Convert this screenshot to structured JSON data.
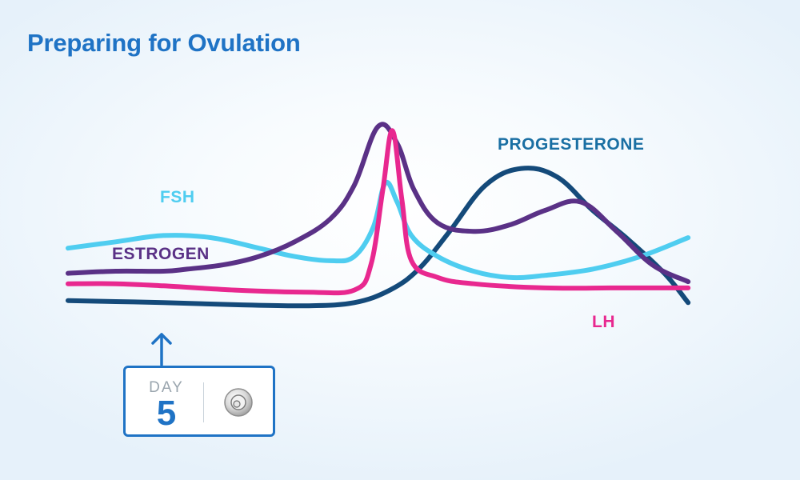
{
  "title": "Preparing for Ovulation",
  "day_card": {
    "label": "DAY",
    "number": "5",
    "icon": "egg-cell-icon"
  },
  "colors": {
    "title": "#1f73c5",
    "FSH": "#4fcdf0",
    "ESTROGEN": "#5a3186",
    "LH": "#e8288f",
    "PROGESTERONE": "#1a6fa3",
    "progesterone_line": "#144a7a",
    "card": "#1f73c5"
  },
  "chart_data": {
    "type": "line",
    "title": "Preparing for Ovulation",
    "xlabel": "",
    "ylabel": "",
    "xlim": [
      1,
      28
    ],
    "ylim": [
      0,
      100
    ],
    "grid": false,
    "legend": "inline labels",
    "marker": {
      "label": "DAY",
      "x": 5
    },
    "series": [
      {
        "name": "FSH",
        "x": [
          1,
          3,
          5,
          7,
          9,
          10.5,
          12,
          13,
          13.8,
          14.3,
          14.8,
          15.4,
          16.5,
          18,
          19.5,
          21,
          23,
          25,
          27
        ],
        "values": [
          32,
          35,
          38,
          37,
          32,
          28,
          26,
          28,
          42,
          63,
          54,
          38,
          28,
          21,
          18,
          19,
          22,
          28,
          37
        ]
      },
      {
        "name": "ESTROGEN",
        "x": [
          1,
          3,
          5,
          6,
          7.5,
          9,
          10.5,
          12,
          13,
          14,
          14.8,
          15.5,
          16.5,
          18,
          19.5,
          21,
          22.5,
          24,
          25.5,
          27
        ],
        "values": [
          20,
          21,
          21,
          22,
          24,
          28,
          35,
          46,
          62,
          90,
          82,
          60,
          44,
          40,
          43,
          50,
          54,
          40,
          24,
          16
        ]
      },
      {
        "name": "LH",
        "x": [
          1,
          3,
          5,
          8,
          11,
          13,
          13.7,
          14.2,
          14.6,
          15,
          15.4,
          16.5,
          18,
          21,
          24,
          27
        ],
        "values": [
          15,
          15,
          14,
          12,
          11,
          12,
          24,
          60,
          88,
          55,
          26,
          18,
          15,
          13,
          13,
          13
        ]
      },
      {
        "name": "PROGESTERONE",
        "x": [
          1,
          3,
          5,
          8,
          11,
          13,
          14.5,
          15.7,
          17,
          18.5,
          20,
          21.5,
          23,
          24.5,
          26,
          27
        ],
        "values": [
          7,
          6.5,
          6,
          5,
          4.5,
          6,
          12,
          22,
          40,
          62,
          70,
          66,
          50,
          36,
          20,
          6
        ]
      }
    ],
    "labels": [
      "FSH",
      "ESTROGEN",
      "LH",
      "PROGESTERONE"
    ]
  }
}
